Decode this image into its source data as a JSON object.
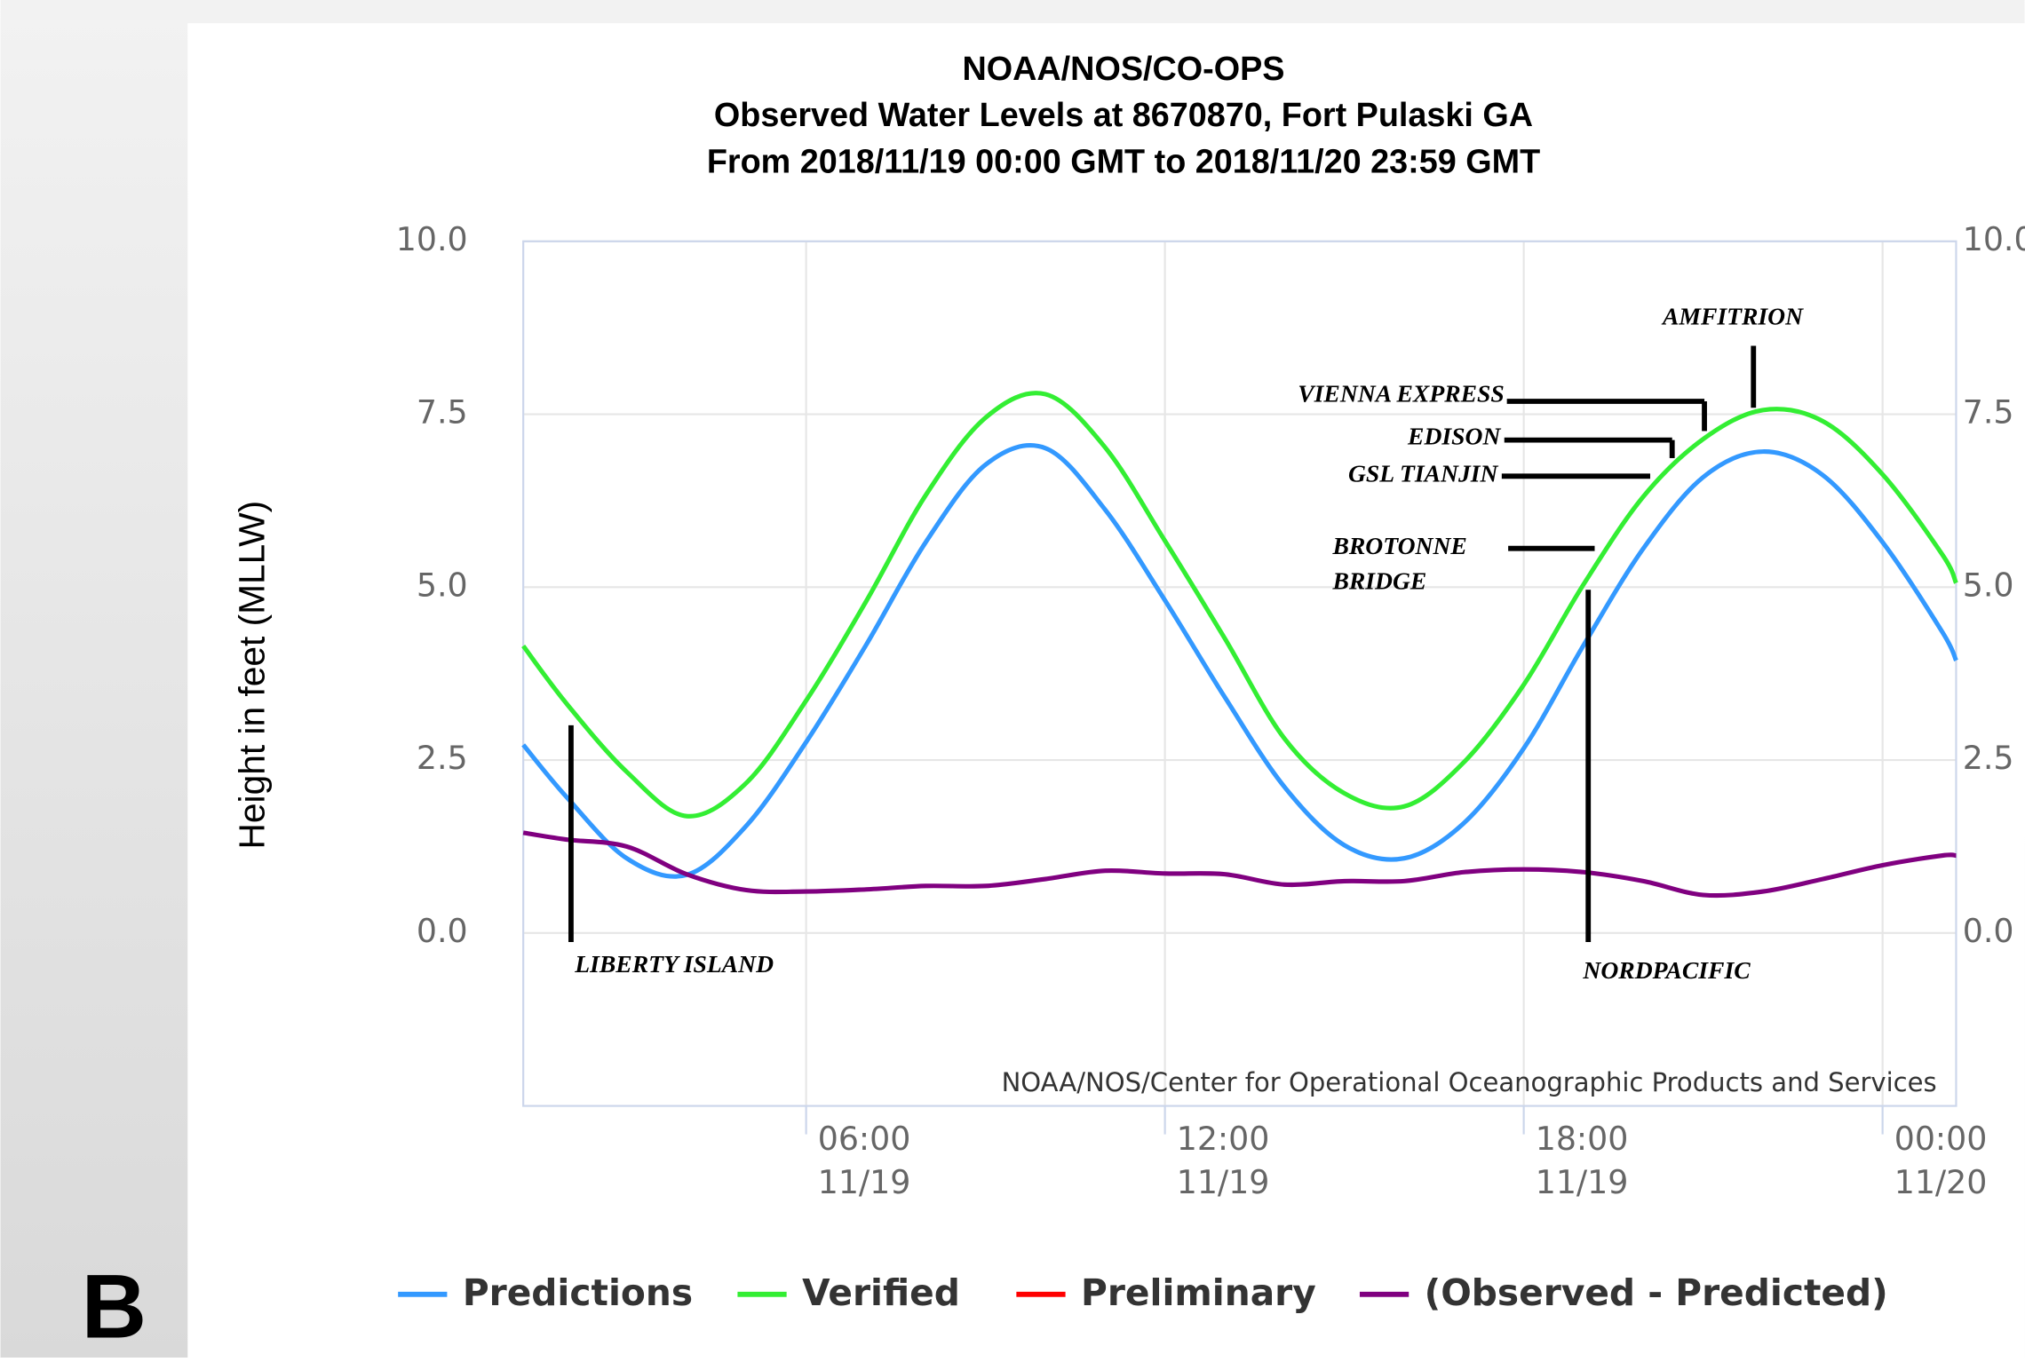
{
  "panel_label": "B",
  "chart_data": {
    "type": "line",
    "title": [
      "NOAA/NOS/CO-OPS",
      "Observed Water Levels at 8670870, Fort Pulaski GA",
      "From 2018/11/19 00:00 GMT to 2018/11/20 23:59 GMT"
    ],
    "y_label": "Height in feet (MLLW)",
    "credit": "NOAA/NOS/Center for Operational Oceanographic Products and Services",
    "x": [
      1.27,
      2,
      3,
      4,
      5,
      6,
      7,
      8,
      9,
      10,
      11,
      12,
      13,
      14,
      15,
      16,
      17,
      18,
      19,
      20,
      21,
      22,
      23,
      24,
      25,
      25.23
    ],
    "xlim": [
      1.27,
      25.23
    ],
    "xticks": [
      {
        "value": 6,
        "label": "06:00",
        "date": "11/19"
      },
      {
        "value": 12,
        "label": "12:00",
        "date": "11/19"
      },
      {
        "value": 18,
        "label": "18:00",
        "date": "11/19"
      },
      {
        "value": 24,
        "label": "00:00",
        "date": "11/20"
      }
    ],
    "ylim": [
      -2.5,
      10
    ],
    "yticks": [
      {
        "value": 0,
        "label": "0.0"
      },
      2.5,
      {
        "value": 5,
        "label": "5.0"
      },
      7.5,
      {
        "value": 10,
        "label": "10.0"
      }
    ],
    "grid": true,
    "series": [
      {
        "name": "Predictions",
        "color": "#3399ff",
        "values": [
          2.72,
          1.96,
          1.08,
          0.84,
          1.55,
          2.76,
          4.16,
          5.65,
          6.77,
          7.01,
          6.12,
          4.81,
          3.41,
          2.11,
          1.27,
          1.08,
          1.59,
          2.67,
          4.16,
          5.56,
          6.59,
          6.96,
          6.62,
          5.65,
          4.35,
          3.94
        ]
      },
      {
        "name": "Verified",
        "color": "#33ee33",
        "values": [
          4.15,
          3.31,
          2.33,
          1.69,
          2.17,
          3.36,
          4.79,
          6.33,
          7.45,
          7.79,
          7.02,
          5.67,
          4.26,
          2.81,
          2.02,
          1.83,
          2.47,
          3.59,
          5.04,
          6.31,
          7.14,
          7.56,
          7.4,
          6.63,
          5.47,
          5.06
        ]
      },
      {
        "name": "Preliminary",
        "color": "#ff0000",
        "values": [
          null,
          null,
          null,
          null,
          null,
          null,
          null,
          null,
          null,
          null,
          null,
          null,
          null,
          null,
          null,
          null,
          null,
          null,
          null,
          null,
          null,
          null,
          null,
          null,
          null,
          null
        ]
      },
      {
        "name": "(Observed - Predicted)",
        "color": "#800080",
        "values": [
          1.45,
          1.35,
          1.25,
          0.85,
          0.62,
          0.6,
          0.63,
          0.68,
          0.68,
          0.78,
          0.9,
          0.86,
          0.85,
          0.7,
          0.75,
          0.75,
          0.88,
          0.92,
          0.88,
          0.75,
          0.55,
          0.6,
          0.78,
          0.98,
          1.12,
          1.12
        ]
      }
    ],
    "annotations": [
      {
        "lines": [
          "LIBERTY ISLAND"
        ]
      },
      {
        "lines": [
          "NORDPACIFIC"
        ]
      },
      {
        "lines": [
          "BROTONNE",
          "BRIDGE"
        ]
      },
      {
        "lines": [
          "GSL TIANJIN"
        ]
      },
      {
        "lines": [
          "EDISON"
        ]
      },
      {
        "lines": [
          "VIENNA EXPRESS"
        ]
      },
      {
        "lines": [
          "AMFITRION"
        ]
      }
    ]
  }
}
